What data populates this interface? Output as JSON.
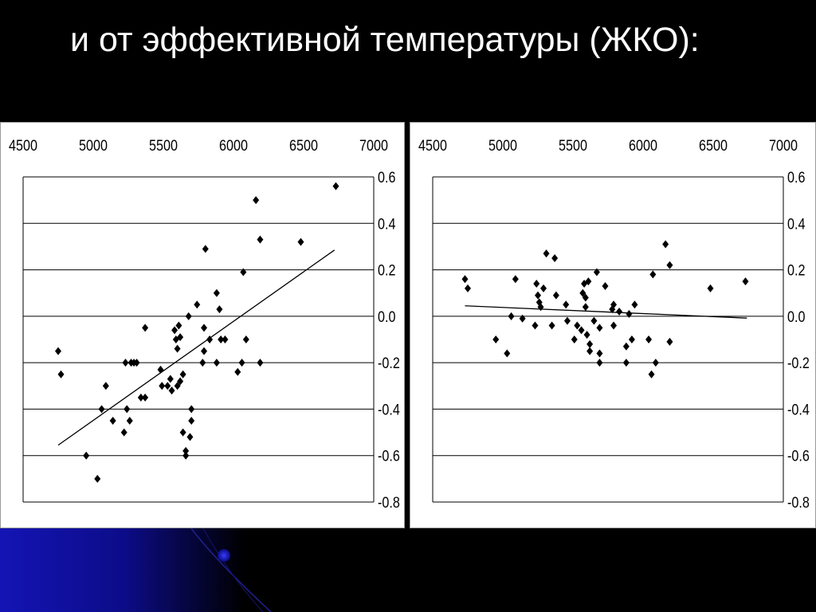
{
  "slide": {
    "title": "и от эффективной температуры (ЖКО):"
  },
  "colors": {
    "background": "#000000",
    "panel": "#ffffff",
    "marker": "#000000",
    "gridline": "#000000",
    "decor_blue": "#1a1acc"
  },
  "chart_data": [
    {
      "type": "scatter",
      "marker": "diamond",
      "xlim": [
        4500,
        7000
      ],
      "ylim": [
        -0.8,
        0.6
      ],
      "x_ticks": [
        "4500",
        "5000",
        "5500",
        "6000",
        "6500",
        "7000"
      ],
      "y_ticks": [
        "0.6",
        "0.4",
        "0.2",
        "0.0",
        "-0.2",
        "-0.4",
        "-0.6",
        "-0.8"
      ],
      "x_axis_position": "top",
      "y_axis_position": "right",
      "grid": "horizontal",
      "points": [
        [
          4750,
          -0.15
        ],
        [
          4770,
          -0.25
        ],
        [
          4950,
          -0.6
        ],
        [
          5030,
          -0.7
        ],
        [
          5060,
          -0.4
        ],
        [
          5090,
          -0.3
        ],
        [
          5140,
          -0.45
        ],
        [
          5220,
          -0.5
        ],
        [
          5230,
          -0.2
        ],
        [
          5240,
          -0.4
        ],
        [
          5260,
          -0.45
        ],
        [
          5270,
          -0.2
        ],
        [
          5290,
          -0.2
        ],
        [
          5310,
          -0.2
        ],
        [
          5340,
          -0.35
        ],
        [
          5370,
          -0.35
        ],
        [
          5370,
          -0.05
        ],
        [
          5480,
          -0.23
        ],
        [
          5490,
          -0.3
        ],
        [
          5530,
          -0.3
        ],
        [
          5550,
          -0.27
        ],
        [
          5560,
          -0.32
        ],
        [
          5580,
          -0.06
        ],
        [
          5590,
          -0.1
        ],
        [
          5600,
          -0.14
        ],
        [
          5600,
          -0.3
        ],
        [
          5610,
          -0.04
        ],
        [
          5620,
          -0.28
        ],
        [
          5620,
          -0.09
        ],
        [
          5640,
          -0.5
        ],
        [
          5640,
          -0.25
        ],
        [
          5660,
          -0.58
        ],
        [
          5660,
          -0.6
        ],
        [
          5680,
          0.0
        ],
        [
          5690,
          -0.52
        ],
        [
          5700,
          -0.45
        ],
        [
          5700,
          -0.4
        ],
        [
          5740,
          0.05
        ],
        [
          5780,
          -0.2
        ],
        [
          5790,
          -0.15
        ],
        [
          5790,
          -0.05
        ],
        [
          5800,
          0.29
        ],
        [
          5830,
          -0.1
        ],
        [
          5880,
          0.1
        ],
        [
          5880,
          -0.2
        ],
        [
          5900,
          0.03
        ],
        [
          5910,
          -0.1
        ],
        [
          5940,
          -0.1
        ],
        [
          6030,
          -0.24
        ],
        [
          6060,
          -0.2
        ],
        [
          6070,
          0.19
        ],
        [
          6090,
          -0.1
        ],
        [
          6160,
          0.5
        ],
        [
          6190,
          0.33
        ],
        [
          6190,
          -0.2
        ],
        [
          6480,
          0.32
        ],
        [
          6730,
          0.56
        ]
      ],
      "trendline": [
        [
          4750,
          -0.555
        ],
        [
          6720,
          0.285
        ]
      ]
    },
    {
      "type": "scatter",
      "marker": "diamond",
      "xlim": [
        4500,
        7000
      ],
      "ylim": [
        -0.8,
        0.6
      ],
      "x_ticks": [
        "4500",
        "5000",
        "5500",
        "6000",
        "6500",
        "7000"
      ],
      "y_ticks": [
        "0.6",
        "0.4",
        "0.2",
        "0.0",
        "-0.2",
        "-0.4",
        "-0.6",
        "-0.8"
      ],
      "x_axis_position": "top",
      "y_axis_position": "right",
      "grid": "horizontal",
      "points": [
        [
          4730,
          0.16
        ],
        [
          4750,
          0.12
        ],
        [
          4950,
          -0.1
        ],
        [
          5030,
          -0.16
        ],
        [
          5060,
          0.0
        ],
        [
          5090,
          0.16
        ],
        [
          5140,
          -0.01
        ],
        [
          5230,
          -0.04
        ],
        [
          5240,
          0.14
        ],
        [
          5250,
          0.09
        ],
        [
          5260,
          0.06
        ],
        [
          5270,
          0.04
        ],
        [
          5290,
          0.12
        ],
        [
          5310,
          0.27
        ],
        [
          5350,
          -0.04
        ],
        [
          5370,
          0.25
        ],
        [
          5380,
          0.09
        ],
        [
          5450,
          0.05
        ],
        [
          5460,
          -0.02
        ],
        [
          5510,
          -0.1
        ],
        [
          5530,
          -0.04
        ],
        [
          5560,
          -0.06
        ],
        [
          5570,
          0.1
        ],
        [
          5580,
          0.14
        ],
        [
          5590,
          0.08
        ],
        [
          5590,
          0.04
        ],
        [
          5600,
          -0.08
        ],
        [
          5610,
          0.15
        ],
        [
          5620,
          -0.15
        ],
        [
          5620,
          -0.12
        ],
        [
          5650,
          -0.02
        ],
        [
          5670,
          0.19
        ],
        [
          5690,
          -0.05
        ],
        [
          5690,
          -0.16
        ],
        [
          5690,
          -0.2
        ],
        [
          5730,
          0.13
        ],
        [
          5780,
          0.03
        ],
        [
          5790,
          0.05
        ],
        [
          5790,
          -0.04
        ],
        [
          5830,
          0.02
        ],
        [
          5880,
          -0.13
        ],
        [
          5880,
          -0.2
        ],
        [
          5900,
          0.01
        ],
        [
          5920,
          -0.1
        ],
        [
          5940,
          0.05
        ],
        [
          6040,
          -0.1
        ],
        [
          6060,
          -0.25
        ],
        [
          6070,
          0.18
        ],
        [
          6090,
          -0.2
        ],
        [
          6160,
          0.31
        ],
        [
          6190,
          0.22
        ],
        [
          6190,
          -0.11
        ],
        [
          6480,
          0.12
        ],
        [
          6730,
          0.15
        ]
      ],
      "trendline": [
        [
          4730,
          0.045
        ],
        [
          6740,
          -0.008
        ]
      ]
    }
  ]
}
